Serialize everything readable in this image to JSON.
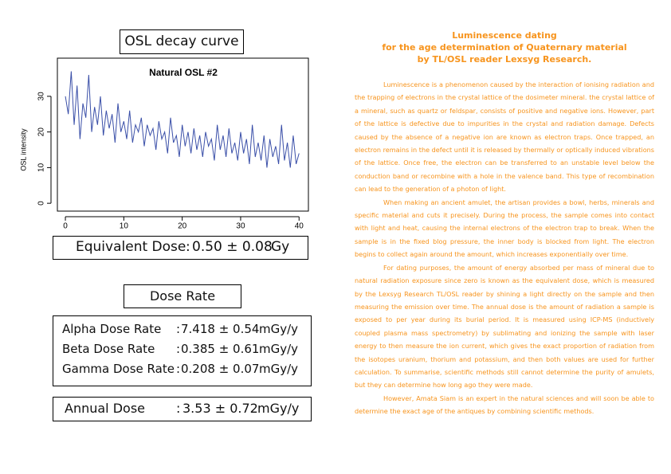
{
  "chart_data": {
    "type": "line",
    "heading": "OSL decay curve",
    "title": "Natural OSL #2",
    "ylabel": "OSL intensity",
    "x": [
      0,
      0.5,
      1,
      1.5,
      2,
      2.5,
      3,
      3.5,
      4,
      4.5,
      5,
      5.5,
      6,
      6.5,
      7,
      7.5,
      8,
      8.5,
      9,
      9.5,
      10,
      10.5,
      11,
      11.5,
      12,
      12.5,
      13,
      13.5,
      14,
      14.5,
      15,
      15.5,
      16,
      16.5,
      17,
      17.5,
      18,
      18.5,
      19,
      19.5,
      20,
      20.5,
      21,
      21.5,
      22,
      22.5,
      23,
      23.5,
      24,
      24.5,
      25,
      25.5,
      26,
      26.5,
      27,
      27.5,
      28,
      28.5,
      29,
      29.5,
      30,
      30.5,
      31,
      31.5,
      32,
      32.5,
      33,
      33.5,
      34,
      34.5,
      35,
      35.5,
      36,
      36.5,
      37,
      37.5,
      38,
      38.5,
      39,
      39.5,
      40
    ],
    "values": [
      30,
      25,
      37,
      22,
      33,
      18,
      28,
      24,
      36,
      20,
      27,
      22,
      30,
      19,
      26,
      21,
      25,
      17,
      28,
      20,
      23,
      18,
      26,
      17,
      22,
      20,
      24,
      16,
      22,
      19,
      21,
      15,
      23,
      18,
      20,
      14,
      24,
      17,
      19,
      13,
      22,
      16,
      20,
      14,
      21,
      15,
      19,
      13,
      20,
      16,
      18,
      12,
      22,
      15,
      19,
      13,
      21,
      14,
      17,
      12,
      20,
      14,
      18,
      11,
      22,
      13,
      17,
      12,
      19,
      10,
      18,
      13,
      16,
      11,
      22,
      12,
      17,
      10,
      19,
      11,
      14
    ],
    "color": "#3a4fa8",
    "xlim": [
      -1.37,
      41.6
    ],
    "ylim": [
      -2.2,
      40.7
    ],
    "xticks": [
      0,
      10,
      20,
      30,
      40
    ],
    "yticks": [
      0,
      10,
      20,
      30
    ]
  },
  "document": {
    "equivalent_dose": {
      "label": "Equivalent Dose",
      "value": "0.50 ± 0.08",
      "unit": "Gy"
    },
    "dose_rate_heading": "Dose Rate",
    "dose_rates": [
      {
        "label": "Alpha Dose Rate",
        "value": "7.418 ± 0.54",
        "unit": "mGy/y"
      },
      {
        "label": "Beta Dose Rate",
        "value": "0.385 ± 0.61",
        "unit": "mGy/y"
      },
      {
        "label": "Gamma Dose Rate",
        "value": "0.208 ± 0.07",
        "unit": "mGy/y"
      }
    ],
    "annual_dose": {
      "label": "Annual Dose",
      "value": "3.53 ± 0.72",
      "unit": "mGy/y"
    },
    "separator": ":",
    "title_lines": [
      "Luminescence dating",
      "for the age determination of Quaternary material",
      "by TL/OSL reader Lexsyg Research."
    ],
    "paragraphs": [
      "Luminescence is a phenomenon caused by the interaction of ionising radiation and the trapping of electrons in the crystal lattice of the dosimeter mineral. the crystal lattice of a mineral, such as quartz or feldspar, consists of positive and negative ions. However, part of the lattice is defective due to impurities in the crystal and radiation damage. Defects caused by the absence of a negative ion are known as electron traps. Once trapped, an electron remains in the defect until it is released by thermally or optically induced vibrations of the lattice. Once free, the electron can be transferred to an unstable level below the conduction band or recombine with a hole in the valence band. This type of recombination can lead to the generation of a photon of light.",
      "When making an ancient amulet, the artisan provides a bowl, herbs, minerals and specific material and cuts it precisely. During the process, the sample comes into contact with light and heat, causing the internal electrons of the electron trap to break. When the sample is in the fixed blog pressure, the inner body is blocked from light. The electron begins to collect again around the amount, which increases exponentially over time.",
      "For dating purposes, the amount of energy absorbed per mass of mineral due to natural radiation exposure since zero is known as the equivalent dose, which is measured by the Lexsyg Research TL/OSL reader by shining a light directly on the sample and then measuring the emission over time. The annual dose is the amount of radiation a sample is exposed to per year during its burial period. It is measured using ICP-MS (inductively coupled plasma mass spectrometry) by sublimating and ionizing the sample with laser energy to then measure the ion current, which gives the exact proportion of radiation from the isotopes uranium, thorium and potassium, and then both values are used for further calculation. To summarise, scientific methods still cannot determine the purity of amulets, but they can determine how long ago they were made.",
      "However, Amata Siam is an expert in the natural sciences and will soon be able to determine the exact age of the antiques by combining scientific methods."
    ]
  }
}
